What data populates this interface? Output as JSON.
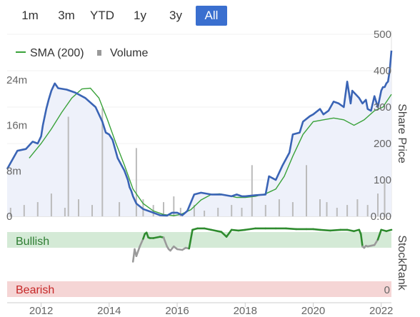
{
  "range_tabs": {
    "items": [
      "1m",
      "3m",
      "YTD",
      "1y",
      "3y",
      "All"
    ],
    "active": "All"
  },
  "colors": {
    "price": "#3a64b5",
    "sma": "#3aa23a",
    "volume": "#bbbbbb",
    "price_fill": "#eef1fa",
    "active_tab": "#3a6fcf",
    "bullish_band": "#d4ead6",
    "bearish_band": "#f5d5d5",
    "stockrank_high": "#2e8b2e",
    "stockrank_low": "#9a9a9a"
  },
  "chart_data": [
    {
      "type": "line",
      "legend": [
        {
          "label": "SMA (200)",
          "icon": "line-icon"
        },
        {
          "label": "Volume",
          "icon": "square-icon"
        }
      ],
      "ylabel": "Share Price",
      "ylim": [
        0,
        500
      ],
      "y_ticks": [
        "500",
        "400",
        "300",
        "200",
        "100",
        "0.00"
      ],
      "volume_ticks": [
        "24m",
        "16m",
        "8m",
        "0"
      ],
      "volume_ylim": [
        0,
        32
      ],
      "xlim": [
        2011.0,
        2022.3
      ],
      "x_ticks": [
        "2012",
        "2014",
        "2016",
        "2018",
        "2020",
        "2022"
      ],
      "series": [
        {
          "name": "Share Price",
          "x": [
            2011.0,
            2011.3,
            2011.55,
            2011.75,
            2011.9,
            2012.0,
            2012.05,
            2012.15,
            2012.22,
            2012.3,
            2012.4,
            2012.5,
            2012.75,
            2013.0,
            2013.3,
            2013.6,
            2013.8,
            2013.9,
            2014.0,
            2014.1,
            2014.25,
            2014.45,
            2014.55,
            2014.6,
            2014.65,
            2014.7,
            2014.8,
            2015.0,
            2015.3,
            2015.5,
            2015.7,
            2015.85,
            2016.0,
            2016.15,
            2016.3,
            2016.5,
            2016.7,
            2017.0,
            2017.3,
            2017.6,
            2017.75,
            2017.9,
            2018.0,
            2018.3,
            2018.6,
            2018.7,
            2018.9,
            2019.1,
            2019.3,
            2019.4,
            2019.6,
            2019.7,
            2019.9,
            2020.0,
            2020.2,
            2020.3,
            2020.45,
            2020.6,
            2020.75,
            2020.9,
            2021.0,
            2021.1,
            2021.15,
            2021.25,
            2021.35,
            2021.45,
            2021.55,
            2021.6,
            2021.7,
            2021.8,
            2021.9,
            2022.0,
            2022.05,
            2022.1,
            2022.15,
            2022.2,
            2022.25,
            2022.3
          ],
          "values": [
            130,
            180,
            185,
            205,
            200,
            220,
            250,
            295,
            320,
            345,
            365,
            352,
            348,
            340,
            325,
            300,
            260,
            230,
            225,
            210,
            160,
            125,
            100,
            80,
            70,
            55,
            35,
            20,
            10,
            3,
            2,
            10,
            10,
            3,
            15,
            60,
            65,
            60,
            60,
            55,
            60,
            55,
            55,
            58,
            60,
            110,
            100,
            140,
            175,
            225,
            230,
            260,
            275,
            280,
            295,
            280,
            290,
            315,
            310,
            300,
            370,
            310,
            345,
            335,
            325,
            310,
            320,
            295,
            290,
            330,
            300,
            345,
            355,
            355,
            365,
            370,
            400,
            455
          ]
        },
        {
          "name": "SMA (200)",
          "x": [
            2011.65,
            2012.0,
            2012.3,
            2012.6,
            2012.9,
            2013.2,
            2013.45,
            2013.7,
            2013.95,
            2014.2,
            2014.45,
            2014.7,
            2015.0,
            2015.3,
            2015.6,
            2015.9,
            2016.1,
            2016.4,
            2016.7,
            2017.0,
            2017.25,
            2017.5,
            2017.75,
            2018.0,
            2018.3,
            2018.6,
            2018.9,
            2019.15,
            2019.4,
            2019.7,
            2020.0,
            2020.3,
            2020.6,
            2020.9,
            2021.2,
            2021.5,
            2021.8,
            2022.05,
            2022.3
          ],
          "values": [
            160,
            200,
            240,
            285,
            325,
            350,
            352,
            325,
            265,
            200,
            140,
            75,
            35,
            15,
            5,
            2,
            5,
            18,
            45,
            60,
            62,
            57,
            52,
            52,
            55,
            62,
            75,
            110,
            165,
            225,
            260,
            265,
            270,
            265,
            250,
            265,
            290,
            300,
            335
          ]
        },
        {
          "name": "Volume",
          "type": "bar",
          "x": [
            2011.1,
            2011.5,
            2011.9,
            2012.3,
            2012.7,
            2012.8,
            2013.1,
            2013.5,
            2013.8,
            2014.3,
            2014.8,
            2015.0,
            2015.3,
            2015.6,
            2015.9,
            2016.1,
            2016.5,
            2016.8,
            2017.2,
            2017.6,
            2017.9,
            2018.2,
            2018.6,
            2019.0,
            2019.4,
            2019.8,
            2020.2,
            2020.4,
            2020.7,
            2021.0,
            2021.3,
            2021.6,
            2021.9,
            2022.1
          ],
          "values": [
            1.5,
            2.0,
            2.5,
            4.0,
            1.5,
            17.5,
            3.0,
            2.0,
            19.0,
            2.5,
            12.0,
            3.0,
            2.0,
            2.5,
            3.5,
            1.5,
            2.0,
            1.0,
            1.5,
            2.0,
            1.5,
            9.0,
            2.0,
            3.0,
            2.5,
            9.0,
            3.0,
            2.5,
            1.5,
            2.0,
            3.0,
            2.0,
            4.0,
            6.0
          ]
        }
      ]
    },
    {
      "type": "line",
      "ylabel": "StockRank",
      "ylim": [
        0,
        100
      ],
      "band_labels": {
        "top": "Bullish",
        "bottom": "Bearish"
      },
      "y_ticks": [
        "0"
      ],
      "xlim": [
        2011.0,
        2022.3
      ],
      "series": [
        {
          "name": "StockRank",
          "x": [
            2014.7,
            2014.75,
            2014.8,
            2014.9,
            2015.0,
            2015.05,
            2015.1,
            2015.15,
            2015.2,
            2015.3,
            2015.5,
            2015.6,
            2015.7,
            2015.75,
            2015.8,
            2015.9,
            2016.0,
            2016.15,
            2016.25,
            2016.35,
            2016.45,
            2016.6,
            2016.8,
            2017.0,
            2017.3,
            2017.45,
            2017.6,
            2017.8,
            2018.0,
            2018.3,
            2018.6,
            2018.9,
            2019.2,
            2019.5,
            2019.8,
            2020.0,
            2020.2,
            2020.5,
            2020.8,
            2021.0,
            2021.2,
            2021.35,
            2021.4,
            2021.45,
            2021.5,
            2021.55,
            2021.6,
            2021.7,
            2021.8,
            2021.9,
            2022.0,
            2022.15,
            2022.3
          ],
          "values": [
            50,
            68,
            58,
            72,
            83,
            90,
            92,
            85,
            84,
            84,
            86,
            85,
            72,
            68,
            66,
            72,
            68,
            67,
            70,
            69,
            96,
            98,
            98,
            96,
            93,
            86,
            96,
            95,
            96,
            98,
            98,
            98,
            98,
            97,
            97,
            97,
            96,
            95,
            96,
            96,
            94,
            96,
            90,
            72,
            70,
            73,
            72,
            73,
            74,
            82,
            96,
            94,
            96
          ]
        }
      ]
    }
  ]
}
